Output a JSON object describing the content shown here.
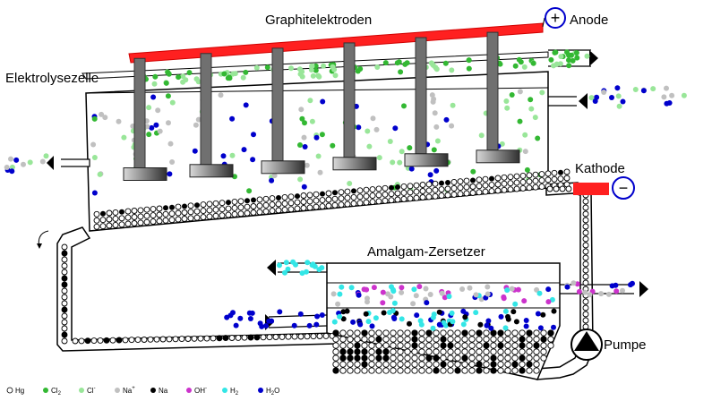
{
  "labels": {
    "graphite_electrodes": "Graphitelektroden",
    "anode": "Anode",
    "cathode": "Kathode",
    "cell": "Elektrolysezelle",
    "decomposer": "Amalgam-Zersetzer",
    "pump": "Pumpe"
  },
  "signs": {
    "plus": "+",
    "minus": "−"
  },
  "legend": [
    {
      "name": "hg",
      "text": "Hg",
      "sup": "",
      "sub": "",
      "color": "#ffffff",
      "hollow": true
    },
    {
      "name": "cl2",
      "text": "Cl",
      "sup": "",
      "sub": "2",
      "color": "#33b833"
    },
    {
      "name": "cl-",
      "text": "Cl",
      "sup": "-",
      "sub": "",
      "color": "#99e699"
    },
    {
      "name": "na+",
      "text": "Na",
      "sup": "+",
      "sub": "",
      "color": "#c0c0c0"
    },
    {
      "name": "na",
      "text": "Na",
      "sup": "",
      "sub": "",
      "color": "#000000"
    },
    {
      "name": "oh-",
      "text": "OH",
      "sup": "-",
      "sub": "",
      "color": "#cc33cc"
    },
    {
      "name": "h2",
      "text": "H",
      "sup": "",
      "sub": "2",
      "color": "#33e6e6"
    },
    {
      "name": "h2o",
      "text": "H",
      "sup": "",
      "sub": "2",
      "suffix": "O",
      "color": "#0000cc"
    }
  ],
  "colors": {
    "anode_bar": "#ff2020",
    "cathode_ring": "#0000cc",
    "electrode": "#707070",
    "cl2": "#33b833",
    "cl_minus": "#99e699",
    "na_plus": "#c0c0c0",
    "na": "#000000",
    "oh_minus": "#cc33cc",
    "h2": "#33e6e6",
    "h2o": "#0000cc"
  }
}
